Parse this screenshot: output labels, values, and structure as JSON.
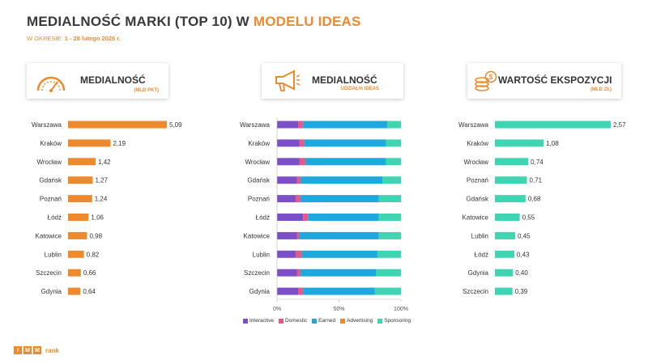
{
  "header": {
    "title_main": "MEDIALNOŚĆ MARKI (TOP 10) W ",
    "title_accent": "MODELU IDEAS",
    "period_label": "W OKRESIE:",
    "period_value": "1 - 28 lutego 2026 r."
  },
  "cards": [
    {
      "title": "MEDIALNOŚĆ",
      "subtitle": "(MLD PKT)",
      "icon": "gauge-icon"
    },
    {
      "title": "MEDIALNOŚĆ",
      "subtitle": "UDZIAŁ% IDEAS",
      "icon": "megaphone-icon"
    },
    {
      "title": "WARTOŚĆ EKSPOZYCJI",
      "subtitle": "(MLD ZŁ)",
      "icon": "coins-icon"
    }
  ],
  "colors": {
    "orange": "#ee8a2e",
    "teal": "#3fd5b3",
    "interactive": "#7b4fc8",
    "domestic": "#e05a8a",
    "earned": "#1fa8dd",
    "advertising": "#ee8a2e",
    "sponsoring": "#3fd5b3"
  },
  "logo": {
    "letters": [
      "I",
      "M",
      "M"
    ],
    "suffix": "rank"
  },
  "chart_data": [
    {
      "type": "bar",
      "orientation": "horizontal",
      "title": "MEDIALNOŚĆ",
      "subtitle": "(MLD PKT)",
      "categories": [
        "Warszawa",
        "Kraków",
        "Wrocław",
        "Gdańsk",
        "Poznań",
        "Łódź",
        "Katowice",
        "Lublin",
        "Szczecin",
        "Gdynia"
      ],
      "values": [
        5.09,
        2.19,
        1.42,
        1.27,
        1.24,
        1.06,
        0.98,
        0.82,
        0.66,
        0.64
      ],
      "value_labels": [
        "5,09",
        "2,19",
        "1,42",
        "1,27",
        "1,24",
        "1,06",
        "0,98",
        "0,82",
        "0,66",
        "0,64"
      ],
      "xlim": [
        0,
        5.09
      ],
      "color": "#ee8a2e"
    },
    {
      "type": "bar",
      "orientation": "horizontal",
      "stacked": "percent",
      "title": "MEDIALNOŚĆ",
      "subtitle": "UDZIAŁ% IDEAS",
      "categories": [
        "Warszawa",
        "Kraków",
        "Wrocław",
        "Gdańsk",
        "Poznań",
        "Łódź",
        "Katowice",
        "Lublin",
        "Szczecin",
        "Gdynia"
      ],
      "series": [
        {
          "name": "Interactive",
          "values": [
            17,
            18,
            18,
            16,
            15,
            21,
            16,
            15,
            16,
            17
          ],
          "color": "#7b4fc8"
        },
        {
          "name": "Domestic",
          "values": [
            4,
            4,
            5,
            3,
            4,
            4,
            2,
            5,
            3,
            4
          ],
          "color": "#e05a8a"
        },
        {
          "name": "Earned",
          "values": [
            68,
            66,
            65,
            66,
            63,
            57,
            64,
            61,
            61,
            58
          ],
          "color": "#1fa8dd"
        },
        {
          "name": "Advertising",
          "values": [
            0,
            0,
            0,
            0,
            0,
            0,
            0,
            0,
            0,
            0
          ],
          "color": "#ee8a2e"
        },
        {
          "name": "Sponsoring",
          "values": [
            11,
            12,
            12,
            15,
            18,
            18,
            18,
            19,
            20,
            21
          ],
          "color": "#3fd5b3"
        }
      ],
      "xlim": [
        0,
        100
      ],
      "xticks": [
        "0%",
        "50%",
        "100%"
      ],
      "legend": "bottom"
    },
    {
      "type": "bar",
      "orientation": "horizontal",
      "title": "WARTOŚĆ EKSPOZYCJI",
      "subtitle": "(MLD ZŁ)",
      "categories": [
        "Warszawa",
        "Kraków",
        "Wrocław",
        "Poznań",
        "Gdańsk",
        "Katowice",
        "Lublin",
        "Łódź",
        "Gdynia",
        "Szczecin"
      ],
      "values": [
        2.57,
        1.08,
        0.74,
        0.71,
        0.68,
        0.55,
        0.45,
        0.43,
        0.4,
        0.39
      ],
      "value_labels": [
        "2,57",
        "1,08",
        "0,74",
        "0,71",
        "0,68",
        "0,55",
        "0,45",
        "0,43",
        "0,40",
        "0,39"
      ],
      "xlim": [
        0,
        2.57
      ],
      "color": "#3fd5b3"
    }
  ]
}
